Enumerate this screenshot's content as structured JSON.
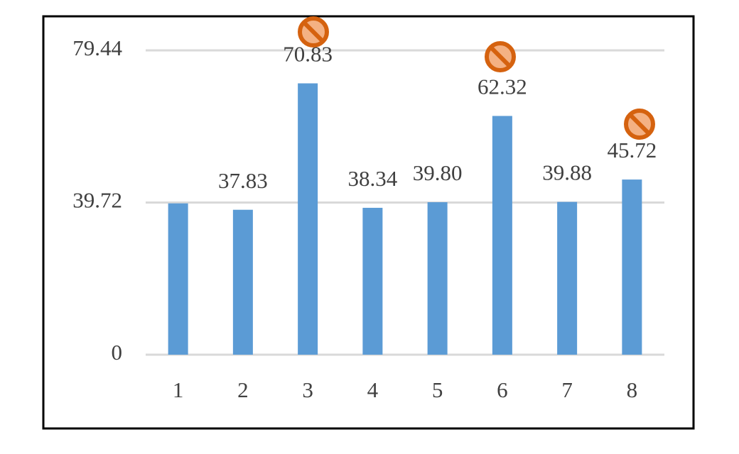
{
  "chart_data": {
    "type": "bar",
    "categories": [
      "1",
      "2",
      "3",
      "4",
      "5",
      "6",
      "7",
      "8"
    ],
    "values": [
      39.5,
      37.83,
      70.83,
      38.34,
      39.8,
      62.32,
      39.88,
      45.72
    ],
    "value_labels": [
      null,
      "37.83",
      "70.83",
      "38.34",
      "39.80",
      "62.32",
      "39.88",
      "45.72"
    ],
    "color": "#5b9bd5",
    "ylim": [
      0,
      79.44
    ],
    "yticks": [
      0,
      39.72,
      79.44
    ],
    "grid": true
  }
}
